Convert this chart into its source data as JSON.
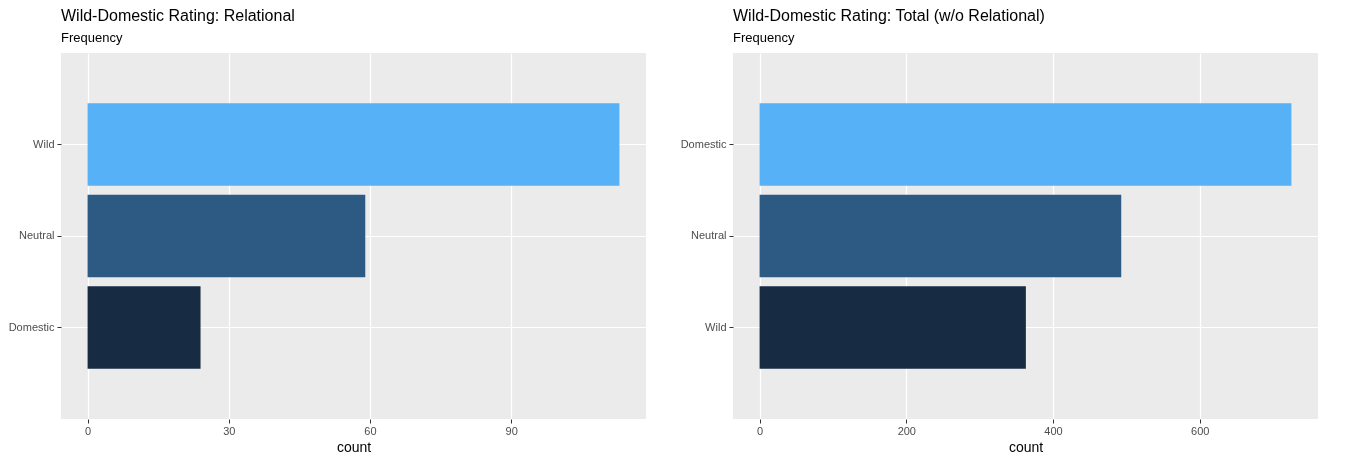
{
  "chart_data": [
    {
      "type": "bar",
      "orientation": "horizontal",
      "title": "Wild-Domestic Rating: Relational",
      "subtitle": "Frequency",
      "xlabel": "count",
      "categories": [
        "Wild",
        "Neutral",
        "Domestic"
      ],
      "values": [
        113,
        59,
        24
      ],
      "colors": [
        "#56b1f7",
        "#2c5a82",
        "#172b43"
      ],
      "xlim": [
        -5.65,
        118.65
      ],
      "xticks": [
        0,
        30,
        60,
        90
      ],
      "grid": true
    },
    {
      "type": "bar",
      "orientation": "horizontal",
      "title": "Wild-Domestic Rating: Total (w/o Relational)",
      "subtitle": "Frequency",
      "xlabel": "count",
      "categories": [
        "Domestic",
        "Neutral",
        "Wild"
      ],
      "values": [
        725,
        493,
        363
      ],
      "colors": [
        "#56b1f7",
        "#2c5a82",
        "#172b43"
      ],
      "xlim": [
        -36.25,
        761.25
      ],
      "xticks": [
        0,
        200,
        400,
        600
      ],
      "grid": true
    }
  ]
}
